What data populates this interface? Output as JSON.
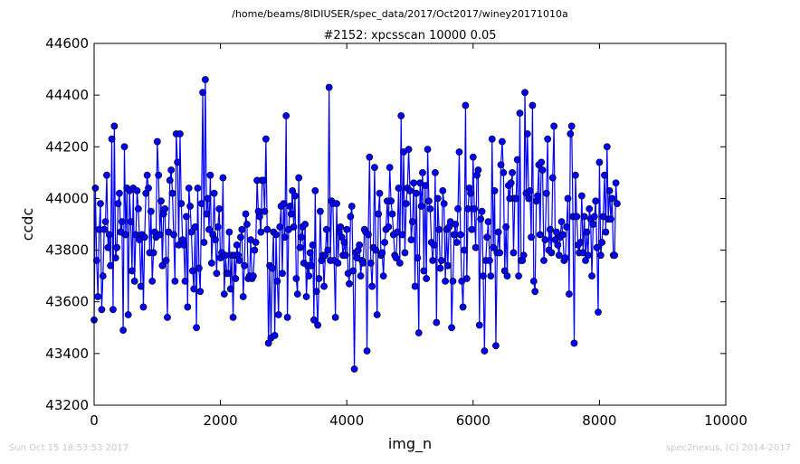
{
  "suptitle": "/home/beams/8IDIUSER/spec_data/2017/Oct2017/winey20171010a",
  "footer_left": "Sun Oct 15 18:53:53 2017",
  "footer_right": "spec2nexus, (C) 2014-2017",
  "colors": {
    "series": "#0000ff",
    "footer": "#c8c8c8",
    "axes": "#000000"
  },
  "chart_data": {
    "type": "line",
    "title": "#2152: xpcsscan 10000 0.05",
    "xlabel": "img_n",
    "ylabel": "ccdc",
    "xlim": [
      0,
      10000
    ],
    "ylim": [
      43200,
      44600
    ],
    "xticks": [
      0,
      2000,
      4000,
      6000,
      8000,
      10000
    ],
    "yticks": [
      43200,
      43400,
      43600,
      43800,
      44000,
      44200,
      44400,
      44600
    ],
    "grid": false,
    "marker": "circle",
    "series": [
      {
        "x_start": 0,
        "x_step": 20,
        "values": [
          43530,
          44040,
          43760,
          43620,
          43880,
          43980,
          43570,
          43700,
          43880,
          43910,
          44090,
          43810,
          43860,
          43740,
          44230,
          43570,
          44280,
          43770,
          43810,
          43980,
          44020,
          43870,
          43910,
          43490,
          44200,
          43860,
          44040,
          43550,
          44030,
          43910,
          43720,
          44040,
          43680,
          43860,
          44030,
          43960,
          43840,
          43660,
          43860,
          43580,
          43850,
          44020,
          44090,
          44040,
          43790,
          43950,
          43680,
          43790,
          43870,
          43850,
          44220,
          44090,
          43860,
          43990,
          43740,
          43940,
          43960,
          43760,
          43540,
          43870,
          44070,
          44110,
          44020,
          43860,
          43680,
          44250,
          44140,
          43820,
          44250,
          43980,
          43840,
          43820,
          43680,
          43930,
          43580,
          44040,
          43970,
          43870,
          43720,
          43650,
          43890,
          43500,
          44040,
          43730,
          43640,
          43980,
          44410,
          43830,
          44460,
          43940,
          44000,
          43880,
          44090,
          43750,
          43860,
          44020,
          43840,
          43710,
          43890,
          43960,
          43770,
          43790,
          44080,
          43630,
          43780,
          43710,
          43710,
          43870,
          43650,
          43780,
          43540,
          43780,
          43690,
          43820,
          43780,
          43760,
          43850,
          43880,
          43620,
          43740,
          43940,
          43900,
          43690,
          43700,
          43840,
          43690,
          43700,
          43800,
          43830,
          44070,
          43950,
          43930,
          43870,
          44070,
          44070,
          43950,
          44230,
          43880,
          43440,
          43740,
          43460,
          43730,
          43870,
          43470,
          43860,
          43680,
          43550,
          43890,
          43970,
          43710,
          43980,
          43850,
          44320,
          43540,
          43880,
          43970,
          43940,
          44030,
          43890,
          44010,
          43690,
          43630,
          44080,
          43810,
          43850,
          43890,
          43750,
          43900,
          43620,
          43740,
          43700,
          43790,
          43740,
          43820,
          43530,
          44030,
          43640,
          43510,
          43690,
          43950,
          43760,
          43780,
          43660,
          43780,
          43880,
          43800,
          44430,
          43760,
          43990,
          43980,
          43760,
          43540,
          43980,
          43750,
          43870,
          43890,
          43850,
          43780,
          43830,
          43780,
          43880,
          43710,
          43670,
          43930,
          43970,
          43720,
          43340,
          43790,
          43770,
          43800,
          43820,
          43700,
          43760,
          43750,
          43880,
          43870,
          43410,
          43860,
          44160,
          43750,
          43660,
          43810,
          44120,
          43800,
          43550,
          43940,
          44020,
          43780,
          43790,
          43700,
          43830,
          43880,
          43990,
          43890,
          44120,
          43990,
          43940,
          43860,
          43780,
          43770,
          43870,
          44040,
          43750,
          44320,
          43860,
          44180,
          43790,
          43980,
          44040,
          44190,
          44030,
          43840,
          43910,
          44060,
          43660,
          44020,
          43770,
          43480,
          44060,
          43970,
          44100,
          43720,
          44050,
          43690,
          44190,
          43990,
          43960,
          43830,
          43760,
          43820,
          44100,
          43520,
          44000,
          43880,
          43730,
          43760,
          44030,
          43980,
          43680,
          43880,
          43740,
          43890,
          43910,
          43500,
          43680,
          43860,
          43900,
          43830,
          43960,
          44180,
          43860,
          43680,
          43580,
          43800,
          44360,
          43690,
          43960,
          44040,
          44020,
          43880,
          44160,
          43960,
          43810,
          44090,
          44110,
          43510,
          43920,
          43950,
          43700,
          43410,
          43760,
          43850,
          43910,
          43760,
          43700,
          44230,
          43810,
          44030,
          43430,
          43790,
          43870,
          43790,
          44130,
          44220,
          44100,
          43720,
          43890,
          43700,
          44050,
          44000,
          44060,
          44100,
          43790,
          44000,
          44000,
          44150,
          43700,
          44330,
          43760,
          43760,
          43780,
          44410,
          44020,
          44250,
          44000,
          44030,
          43850,
          44360,
          43680,
          43640,
          43990,
          44010,
          44130,
          43860,
          44140,
          44110,
          43760,
          43840,
          44020,
          44230,
          43800,
          43880,
          43790,
          44080,
          44280,
          43840,
          43870,
          43820,
          43780,
          43850,
          43910,
          43860,
          43760,
          43770,
          43890,
          44000,
          43630,
          44250,
          44280,
          43930,
          43440,
          44090,
          43930,
          43820,
          43790,
          43830,
          44010,
          43790,
          43930,
          43760,
          43870,
          43780,
          43960,
          43920,
          43700,
          43900,
          43930,
          43990,
          43810,
          43560,
          44140,
          43780,
          43830,
          43930,
          44090,
          43870,
          44200,
          43920,
          44030,
          43920,
          44000,
          43780,
          43780,
          44060,
          43980
        ]
      }
    ]
  }
}
